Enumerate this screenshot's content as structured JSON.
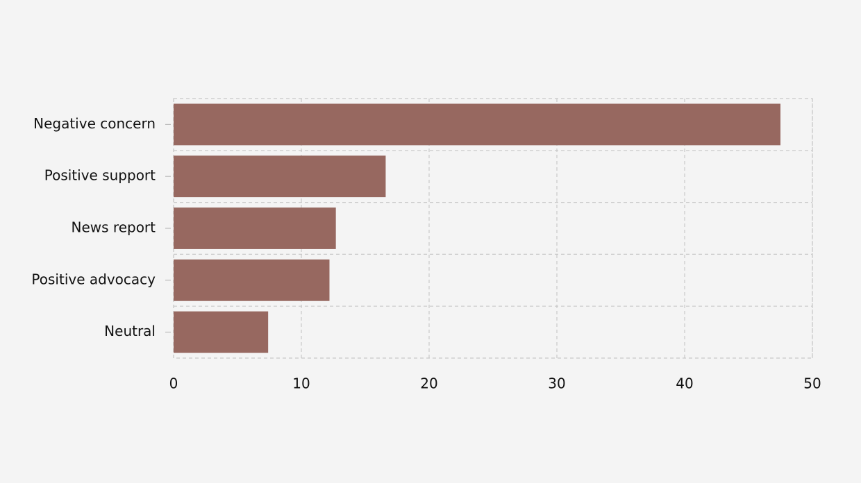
{
  "chart_data": {
    "type": "bar",
    "orientation": "horizontal",
    "categories": [
      "Negative concern",
      "Positive support",
      "News report",
      "Positive advocacy",
      "Neutral"
    ],
    "values": [
      47.5,
      16.6,
      12.7,
      12.2,
      7.4
    ],
    "color": "#976860",
    "xlim": [
      0,
      50
    ],
    "xticks": [
      0,
      10,
      20,
      30,
      40,
      50
    ],
    "grid": true
  }
}
